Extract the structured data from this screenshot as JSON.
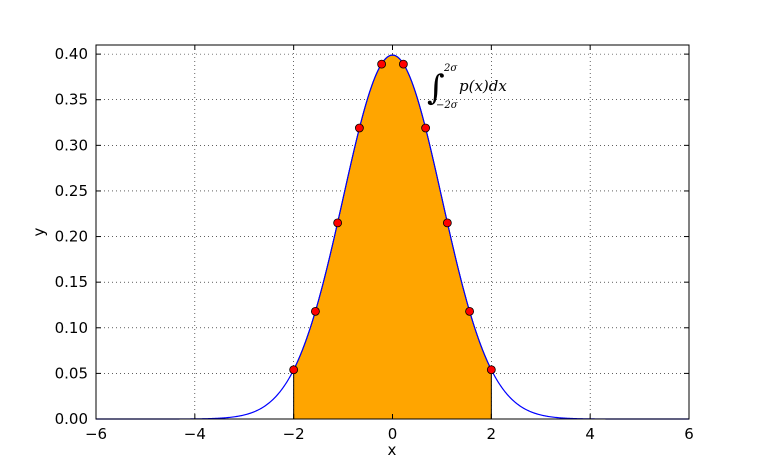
{
  "chart_data": {
    "type": "line",
    "xlabel": "x",
    "ylabel": "y",
    "xlim": [
      -6,
      6
    ],
    "ylim": [
      0,
      0.41
    ],
    "grid": true,
    "x_ticks": [
      -6,
      -4,
      -2,
      0,
      2,
      4,
      6
    ],
    "x_tick_labels": [
      "−6",
      "−4",
      "−2",
      "0",
      "2",
      "4",
      "6"
    ],
    "y_ticks": [
      0.0,
      0.05,
      0.1,
      0.15,
      0.2,
      0.25,
      0.3,
      0.35,
      0.4
    ],
    "y_tick_labels": [
      "0.00",
      "0.05",
      "0.10",
      "0.15",
      "0.20",
      "0.25",
      "0.30",
      "0.35",
      "0.40"
    ],
    "curve": {
      "function": "standard normal pdf",
      "color": "#0000ff",
      "x_range": [
        -6,
        6
      ]
    },
    "shaded_region": {
      "x_from": -2,
      "x_to": 2,
      "color": "#ffa500"
    },
    "markers": {
      "color": "#ff0000",
      "points": [
        {
          "x": -2.0,
          "y": 0.054
        },
        {
          "x": -1.56,
          "y": 0.118
        },
        {
          "x": -1.11,
          "y": 0.215
        },
        {
          "x": -0.67,
          "y": 0.319
        },
        {
          "x": -0.22,
          "y": 0.389
        },
        {
          "x": 0.22,
          "y": 0.389
        },
        {
          "x": 0.67,
          "y": 0.319
        },
        {
          "x": 1.11,
          "y": 0.215
        },
        {
          "x": 1.56,
          "y": 0.118
        },
        {
          "x": 2.0,
          "y": 0.054
        }
      ]
    },
    "annotation": {
      "integral_symbol": "∫",
      "upper_limit": "2σ",
      "lower_limit": "−2σ",
      "integrand": "p(x)dx"
    }
  }
}
